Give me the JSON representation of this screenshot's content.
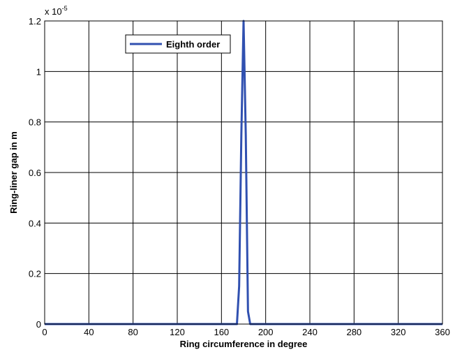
{
  "chart_data": {
    "type": "line",
    "title": "",
    "xlabel": "Ring circumference in degree",
    "ylabel": "Ring-liner gap in m",
    "y_exponent_label": "x 10",
    "y_exponent_power": "-5",
    "xlim": [
      0,
      360
    ],
    "ylim": [
      0,
      1.2
    ],
    "x_ticks": [
      0,
      40,
      80,
      120,
      160,
      200,
      240,
      280,
      320,
      360
    ],
    "x_tick_labels": [
      "0",
      "40",
      "80",
      "120",
      "160",
      "200",
      "240",
      "280",
      "320",
      "360"
    ],
    "y_ticks": [
      0,
      0.2,
      0.4,
      0.6,
      0.8,
      1.0,
      1.2
    ],
    "y_tick_labels": [
      "0",
      "0.2",
      "0.4",
      "0.6",
      "0.8",
      "1",
      "1.2"
    ],
    "grid": true,
    "legend_position": "top-left",
    "series": [
      {
        "name": "Eighth order",
        "color": "#3050b0",
        "x": [
          0,
          174,
          176,
          178,
          180,
          182,
          184,
          186,
          360
        ],
        "y": [
          0,
          0,
          0.15,
          0.75,
          1.2,
          0.75,
          0.05,
          0,
          0
        ]
      }
    ]
  }
}
